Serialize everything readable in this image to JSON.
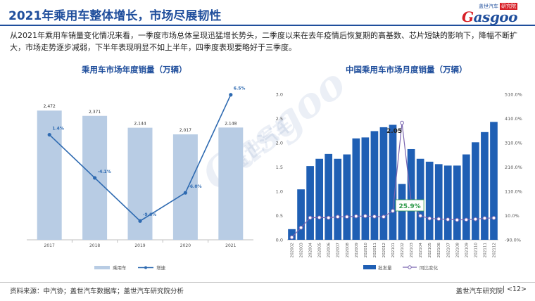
{
  "header": {
    "title": "2021年乘用车整体增长，市场尽展韧性",
    "logo_top_text": "盖世汽车",
    "logo_badge": "研究院",
    "logo_word_g": "G",
    "logo_word_rest": "asgoo"
  },
  "summary": "从2021年乘用车销量变化情况来看，一季度市场总体呈现迅猛增长势头，二季度以来在去年疫情后恢复期的高基数、芯片短缺的影响下，降幅不断扩大，市场走势逐步减弱，下半年表现明显不如上半年，四季度表现要略好于三季度。",
  "watermark": {
    "word": "Gasgoo",
    "cn": "盖世汽车"
  },
  "colors": {
    "brand_blue": "#1f4e9c",
    "bar_light": "#b8cce4",
    "line_blue": "#2e6ab1",
    "bar_dark": "#1f5fb4",
    "line_purple": "#7a66b0",
    "label_green": "#2e9a4a"
  },
  "chart_data": [
    {
      "type": "bar",
      "title": "乘用车市场年度销量（万辆）",
      "categories": [
        "2017",
        "2018",
        "2019",
        "2020",
        "2021"
      ],
      "series": [
        {
          "name": "乘用车",
          "kind": "bar",
          "values": [
            2472,
            2371,
            2144,
            2017,
            2148
          ],
          "labels": [
            "2,472",
            "2,371",
            "2,144",
            "2,017",
            "2,148"
          ]
        },
        {
          "name": "增速",
          "kind": "line",
          "axis": "secondary",
          "values": [
            1.4,
            -4.1,
            -9.6,
            -6.0,
            6.5
          ],
          "labels": [
            "1.4%",
            "-4.1%",
            "-9.6%",
            "-6.0%",
            "6.5%"
          ]
        }
      ],
      "ylim": [
        0,
        3000
      ],
      "y2lim": [
        -12,
        8
      ],
      "grid": false,
      "legend": "bottom"
    },
    {
      "type": "bar",
      "title": "中国乘用车市场月度销量（万辆）",
      "categories": [
        "202002",
        "202003",
        "202004",
        "202005",
        "202006",
        "202007",
        "202008",
        "202009",
        "202010",
        "202011",
        "202012",
        "202101",
        "202102",
        "202103",
        "202104",
        "202105",
        "202106",
        "202107",
        "202108",
        "202109",
        "202110",
        "202111",
        "202112"
      ],
      "series": [
        {
          "name": "批发量",
          "kind": "bar",
          "values": [
            0.22,
            1.04,
            1.52,
            1.67,
            1.77,
            1.67,
            1.76,
            2.09,
            2.11,
            2.24,
            2.32,
            2.37,
            1.15,
            1.87,
            1.67,
            1.61,
            1.56,
            1.53,
            1.53,
            1.76,
            2.01,
            2.22,
            2.43
          ]
        },
        {
          "name": "同比变化",
          "kind": "line",
          "axis": "secondary",
          "values": [
            -80.0,
            -40.0,
            1.0,
            2.0,
            1.0,
            5.0,
            5.0,
            7.0,
            8.0,
            6.0,
            5.0,
            29.0,
            392.0,
            69.0,
            9.0,
            -2.0,
            -4.0,
            -6.0,
            -8.0,
            -7.0,
            -5.0,
            -1.0,
            0.0
          ]
        }
      ],
      "annotations": [
        {
          "text": "2.05",
          "category": "202012"
        },
        {
          "text": "25.9%",
          "category": "202103"
        }
      ],
      "y_ticks": [
        "0.0",
        "0.5",
        "1.0",
        "1.5",
        "2.0",
        "2.5",
        "3.0"
      ],
      "ylim": [
        0,
        3
      ],
      "y2_ticks": [
        "-90.0%",
        "10.0%",
        "110.0%",
        "210.0%",
        "310.0%",
        "410.0%",
        "510.0%"
      ],
      "y2lim": [
        -90,
        510
      ],
      "grid": false,
      "legend": "bottom"
    }
  ],
  "footer": {
    "source": "资料来源：中汽协；盖世汽车数据库；盖世汽车研究院分析",
    "org": "盖世汽车研究院",
    "page": "| <12>"
  }
}
